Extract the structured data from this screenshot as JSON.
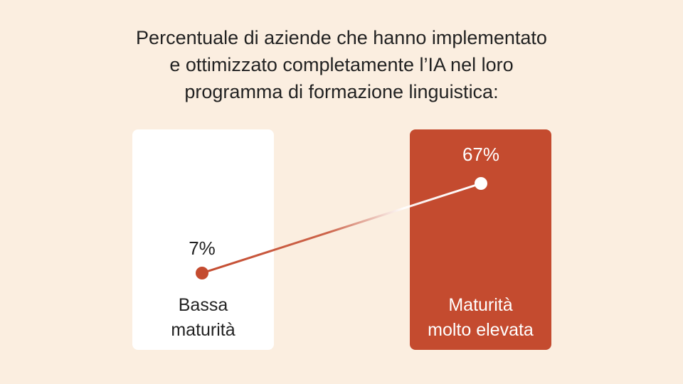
{
  "title_lines": [
    "Percentuale di aziende che hanno implementato",
    "e ottimizzato completamente l’IA nel loro",
    "programma di formazione linguistica:"
  ],
  "colors": {
    "background": "#fbeee0",
    "card_low": "#ffffff",
    "card_high": "#c44b2f",
    "accent": "#c44b2f",
    "text_dark": "#222222",
    "text_light": "#ffffff"
  },
  "chart_data": {
    "type": "line",
    "categories": [
      [
        "Bassa",
        "maturità"
      ],
      [
        "Maturità",
        "molto elevata"
      ]
    ],
    "values": [
      7,
      67
    ],
    "value_labels": [
      "7%",
      "67%"
    ],
    "unit": "%",
    "ylim": [
      0,
      100
    ]
  }
}
